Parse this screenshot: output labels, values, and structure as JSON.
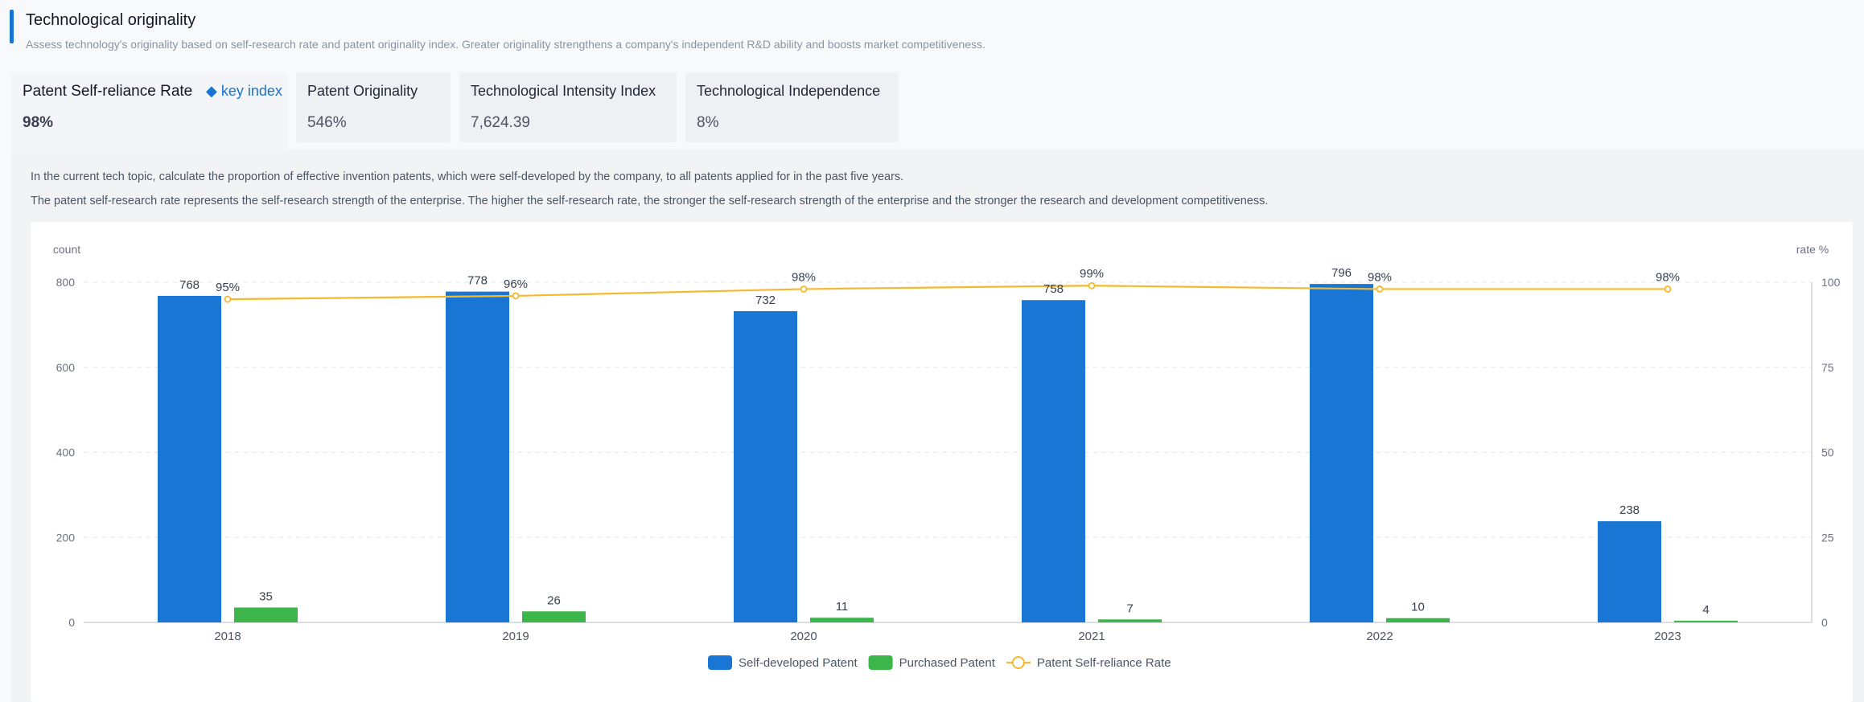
{
  "header": {
    "title": "Technological originality",
    "subtitle": "Assess technology's originality based on self-research rate and patent originality index. Greater originality strengthens a company's independent R&D ability and boosts market competitiveness."
  },
  "tabs": [
    {
      "label": "Patent Self-reliance Rate",
      "value": "98%",
      "active": true,
      "badge": "key index"
    },
    {
      "label": "Patent Originality",
      "value": "546%"
    },
    {
      "label": "Technological Intensity Index",
      "value": "7,624.39"
    },
    {
      "label": "Technological Independence",
      "value": "8%"
    }
  ],
  "description": {
    "line1": "In the current tech topic, calculate the proportion of effective invention patents, which were self-developed by the company, to all patents applied for in the past five years.",
    "line2": "The patent self-research rate represents the self-research strength of the enterprise. The higher the self-research rate, the stronger the self-research strength of the enterprise and the stronger the research and development competitiveness."
  },
  "chart_data": {
    "type": "bar",
    "categories": [
      "2018",
      "2019",
      "2020",
      "2021",
      "2022",
      "2023"
    ],
    "series": [
      {
        "name": "Self-developed Patent",
        "type": "bar",
        "axis": "left",
        "values": [
          768,
          778,
          732,
          758,
          796,
          238
        ],
        "labels": [
          "768",
          "778",
          "732",
          "758",
          "796",
          "238"
        ]
      },
      {
        "name": "Purchased Patent",
        "type": "bar",
        "axis": "left",
        "values": [
          35,
          26,
          11,
          7,
          10,
          4
        ],
        "labels": [
          "35",
          "26",
          "11",
          "7",
          "10",
          "4"
        ]
      },
      {
        "name": "Patent Self-reliance Rate",
        "type": "line",
        "axis": "right",
        "values": [
          95,
          96,
          98,
          99,
          98,
          98
        ],
        "labels": [
          "95%",
          "96%",
          "98%",
          "99%",
          "98%",
          "98%"
        ]
      }
    ],
    "ylabel_left": "count",
    "ylabel_right": "rate %",
    "ylim_left": [
      0,
      800
    ],
    "ylim_right": [
      0,
      100
    ],
    "yticks_left": [
      "0",
      "200",
      "400",
      "600",
      "800"
    ],
    "yticks_right": [
      "0",
      "25",
      "50",
      "75",
      "100"
    ],
    "grid": true,
    "legend_position": "bottom-center",
    "colors": {
      "self_developed": "#1a76d4",
      "purchased": "#3cb54a",
      "rate": "#f5b82e"
    }
  }
}
